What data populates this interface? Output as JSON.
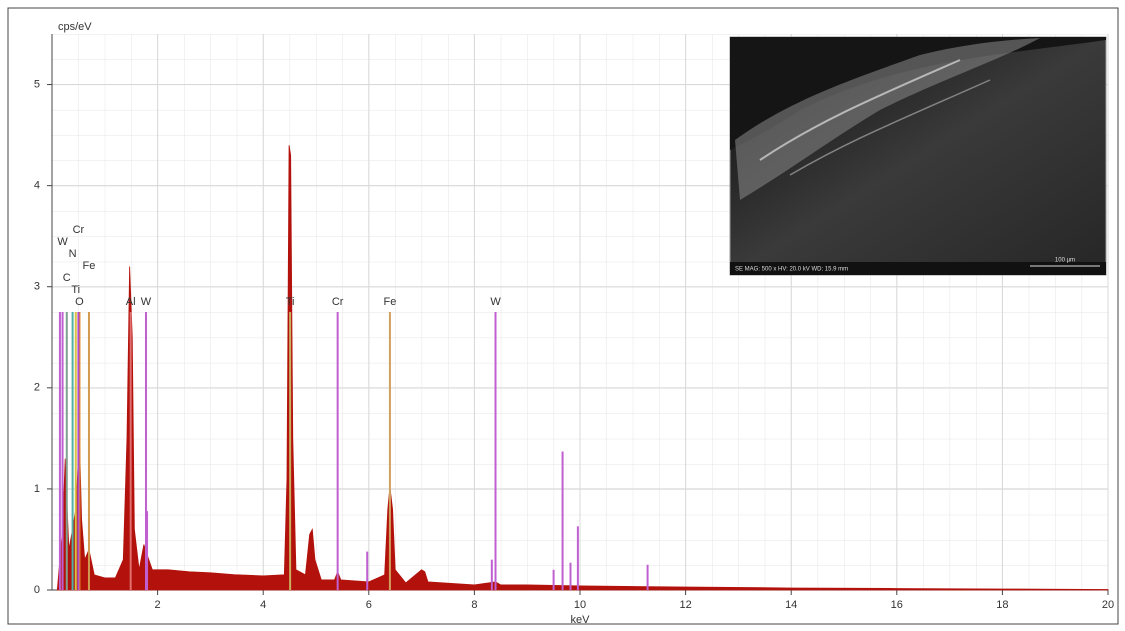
{
  "chart_data": {
    "type": "area",
    "y_label": "cps/eV",
    "x_label": "keV",
    "xlim": [
      0,
      20
    ],
    "ylim": [
      0,
      5.5
    ],
    "xticks": [
      2,
      4,
      6,
      8,
      10,
      12,
      14,
      16,
      18,
      20
    ],
    "yticks": [
      0,
      1,
      2,
      3,
      4,
      5
    ],
    "grid": true,
    "series": [
      {
        "color": "#b3120c",
        "x": [
          0.1,
          0.15,
          0.2,
          0.25,
          0.28,
          0.32,
          0.39,
          0.45,
          0.52,
          0.56,
          0.62,
          0.7,
          0.8,
          1.0,
          1.2,
          1.35,
          1.42,
          1.47,
          1.52,
          1.56,
          1.65,
          1.74,
          1.8,
          1.9,
          2.2,
          2.6,
          3.0,
          3.5,
          4.0,
          4.4,
          4.45,
          4.49,
          4.52,
          4.56,
          4.62,
          4.8,
          4.88,
          4.93,
          4.98,
          5.1,
          5.35,
          5.41,
          5.47,
          6.0,
          6.3,
          6.36,
          6.4,
          6.45,
          6.5,
          6.7,
          7.0,
          7.06,
          7.12,
          8.0,
          8.4,
          8.5,
          9.0,
          10,
          12,
          14,
          16,
          18,
          20
        ],
        "values": [
          0,
          0.3,
          0.6,
          1.3,
          0.9,
          0.4,
          0.6,
          0.8,
          1.5,
          0.7,
          0.3,
          0.4,
          0.15,
          0.12,
          0.12,
          0.3,
          1.5,
          3.2,
          2.5,
          0.6,
          0.2,
          0.45,
          0.35,
          0.2,
          0.2,
          0.18,
          0.17,
          0.15,
          0.14,
          0.15,
          1.1,
          4.4,
          4.3,
          1.5,
          0.2,
          0.15,
          0.55,
          0.6,
          0.3,
          0.1,
          0.1,
          0.18,
          0.1,
          0.08,
          0.15,
          0.8,
          1.02,
          0.8,
          0.2,
          0.07,
          0.2,
          0.18,
          0.08,
          0.05,
          0.08,
          0.05,
          0.05,
          0.04,
          0.03,
          0.02,
          0.015,
          0.01,
          0.005
        ]
      }
    ],
    "markers": [
      {
        "element": "O",
        "x": 0.52,
        "height": 2.75,
        "color": "#e08a20"
      },
      {
        "element": "Ti",
        "x": 0.45,
        "height": 2.75,
        "color": "#d8c040"
      },
      {
        "element": "C",
        "x": 0.28,
        "height": 2.75,
        "color": "#80a090"
      },
      {
        "element": "Fe",
        "x": 0.7,
        "height": 2.75,
        "color": "#d09a50"
      },
      {
        "element": "N",
        "x": 0.39,
        "height": 2.75,
        "color": "#50b0a8"
      },
      {
        "element": "W",
        "x": 0.2,
        "height": 2.75,
        "color": "#c060d0"
      },
      {
        "element": "Cr",
        "x": 0.5,
        "height": 2.75,
        "color": "#b050c8"
      },
      {
        "element": "Al",
        "x": 1.49,
        "height": 2.75,
        "color": "#e07070"
      },
      {
        "element": "W",
        "x": 1.78,
        "height": 2.75,
        "color": "#c060d0"
      },
      {
        "element": "Ti",
        "x": 4.51,
        "height": 2.75,
        "color": "#c8b060"
      },
      {
        "element": "Cr",
        "x": 5.41,
        "height": 2.75,
        "color": "#c060d0"
      },
      {
        "element": "Fe",
        "x": 6.4,
        "height": 2.75,
        "color": "#d0a060"
      },
      {
        "element": "W",
        "x": 8.4,
        "height": 2.75,
        "color": "#c060d0"
      }
    ],
    "lines": [
      {
        "x": 0.15,
        "height": 2.75,
        "color": "#c060d0"
      },
      {
        "x": 1.8,
        "height": 0.78,
        "color": "#c060d0"
      },
      {
        "x": 5.97,
        "height": 0.38,
        "color": "#c060d0"
      },
      {
        "x": 9.5,
        "height": 0.2,
        "color": "#c060d0"
      },
      {
        "x": 9.67,
        "height": 1.37,
        "color": "#c060d0"
      },
      {
        "x": 9.82,
        "height": 0.27,
        "color": "#c060d0"
      },
      {
        "x": 9.96,
        "height": 0.63,
        "color": "#c060d0"
      },
      {
        "x": 11.28,
        "height": 0.25,
        "color": "#c060d0"
      },
      {
        "x": 8.33,
        "height": 0.3,
        "color": "#c060d0"
      }
    ]
  },
  "inset": {
    "caption": "SE  MAG: 500 x  HV: 20.0 kV  WD: 15.9 mm",
    "scale_bar": "100 µm"
  }
}
